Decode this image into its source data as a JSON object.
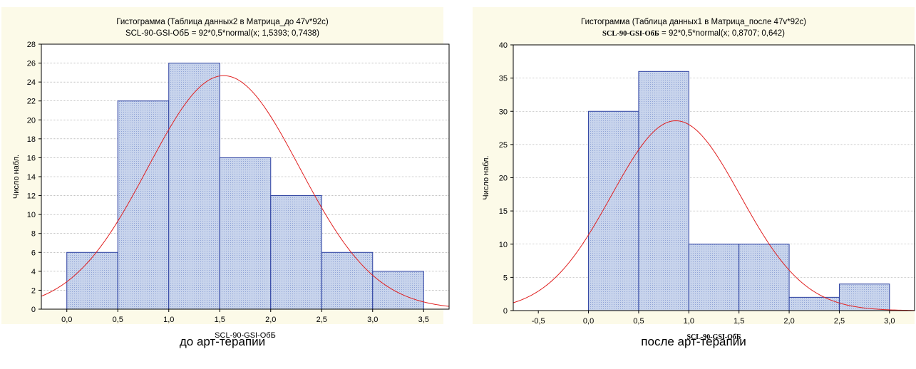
{
  "chart_data": [
    {
      "type": "bar",
      "title": "Гистограмма (Таблица данных2 в Матрица_до 47v*92c)",
      "subtitle": "SCL-90-GSI-ОбБ = 92*0,5*normal(x; 1,5393; 0,7438)",
      "subtitle_var": "SCL-90-GSI-ОбБ",
      "subtitle_rest": " = 92*0,5*normal(x; 1,5393; 0,7438)",
      "xlabel": "SCL-90-GSI-ОбБ",
      "ylabel": "Число набл.",
      "caption": "до арт-терапии",
      "bins": [
        [
          0.0,
          0.5
        ],
        [
          0.5,
          1.0
        ],
        [
          1.0,
          1.5
        ],
        [
          1.5,
          2.0
        ],
        [
          2.0,
          2.5
        ],
        [
          2.5,
          3.0
        ],
        [
          3.0,
          3.5
        ]
      ],
      "values": [
        6,
        22,
        26,
        16,
        12,
        6,
        4
      ],
      "xlim": [
        -0.25,
        3.75
      ],
      "ylim": [
        0,
        28
      ],
      "xticks": [
        0.0,
        0.5,
        1.0,
        1.5,
        2.0,
        2.5,
        3.0,
        3.5
      ],
      "xtick_labels": [
        "0,0",
        "0,5",
        "1,0",
        "1,5",
        "2,0",
        "2,5",
        "3,0",
        "3,5"
      ],
      "yticks": [
        0,
        2,
        4,
        6,
        8,
        10,
        12,
        14,
        16,
        18,
        20,
        22,
        24,
        26,
        28
      ],
      "ytick_labels": [
        "0",
        "2",
        "4",
        "6",
        "8",
        "10",
        "12",
        "14",
        "16",
        "18",
        "20",
        "22",
        "24",
        "26",
        "28"
      ],
      "normal_fit": {
        "n": 92,
        "width": 0.5,
        "mean": 1.5393,
        "sd": 0.7438
      },
      "grid": true,
      "colors": {
        "bar_fill": "#c8d4ec",
        "bar_edge": "#2a3fa0",
        "curve": "#e02020",
        "grid": "#a0a0a0",
        "background": "#fcfae8"
      }
    },
    {
      "type": "bar",
      "title": "Гистограмма (Таблица данных1 в Матрица_после 47v*92c)",
      "subtitle": "SCL-90-GSI-ОбБ = 92*0,5*normal(x; 0,8707; 0,642)",
      "subtitle_var": "SCL-90-GSI-ОбБ",
      "subtitle_rest": " = 92*0,5*normal(x; 0,8707; 0,642)",
      "xlabel": "SCL-90-GSI-ОбБ",
      "ylabel": "Число набл.",
      "caption": "после арт-терапии",
      "bins": [
        [
          0.0,
          0.5
        ],
        [
          0.5,
          1.0
        ],
        [
          1.0,
          1.5
        ],
        [
          1.5,
          2.0
        ],
        [
          2.0,
          2.5
        ],
        [
          2.5,
          3.0
        ]
      ],
      "values": [
        30,
        36,
        10,
        10,
        2,
        4
      ],
      "xlim": [
        -0.75,
        3.25
      ],
      "ylim": [
        0,
        40
      ],
      "xticks": [
        -0.5,
        0.0,
        0.5,
        1.0,
        1.5,
        2.0,
        2.5,
        3.0
      ],
      "xtick_labels": [
        "-0,5",
        "0,0",
        "0,5",
        "1,0",
        "1,5",
        "2,0",
        "2,5",
        "3,0"
      ],
      "yticks": [
        0,
        5,
        10,
        15,
        20,
        25,
        30,
        35,
        40
      ],
      "ytick_labels": [
        "0",
        "5",
        "10",
        "15",
        "20",
        "25",
        "30",
        "35",
        "40"
      ],
      "normal_fit": {
        "n": 92,
        "width": 0.5,
        "mean": 0.8707,
        "sd": 0.642
      },
      "grid": true,
      "colors": {
        "bar_fill": "#c8d4ec",
        "bar_edge": "#2a3fa0",
        "curve": "#e02020",
        "grid": "#a0a0a0",
        "background": "#fcfae8"
      }
    }
  ]
}
